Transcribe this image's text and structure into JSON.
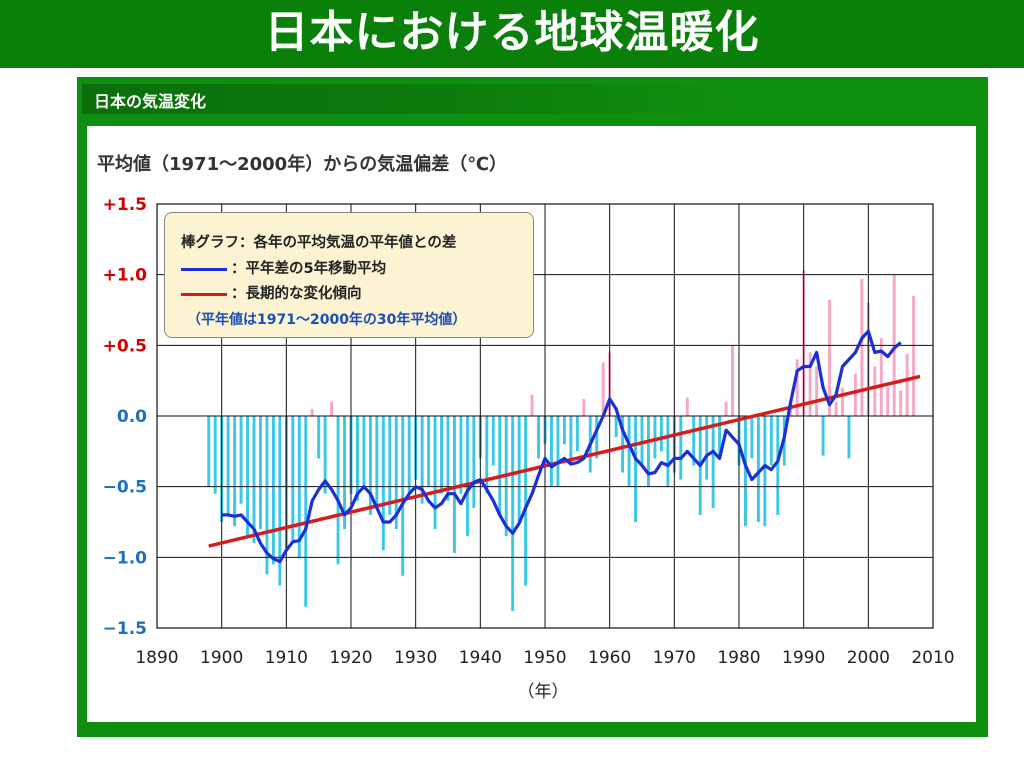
{
  "page_title": "日本における地球温暖化",
  "panel_title": "日本の気温変化",
  "colors": {
    "banner_green": "#0a7f0a",
    "frame_green": "#0f8f0f",
    "positive_bar": "#f4a7c6",
    "negative_bar": "#39c8e8",
    "moving_avg": "#1a2fd6",
    "trend": "#d81b1b",
    "ytick_positive": "#d40000",
    "ytick_negative": "#1e6fc2",
    "legend_bg": "#fbf3d2"
  },
  "chart_data": {
    "type": "bar",
    "title": "平均値（1971〜2000年）からの気温偏差（℃）",
    "xlabel": "（年）",
    "ylabel": "",
    "xlim": [
      1890,
      2010
    ],
    "ylim": [
      -1.5,
      1.5
    ],
    "grid": true,
    "legend_position": "top-left",
    "x_ticks": [
      "1890",
      "1900",
      "1910",
      "1920",
      "1930",
      "1940",
      "1950",
      "1960",
      "1970",
      "1980",
      "1990",
      "2000",
      "2010"
    ],
    "y_ticks": [
      "+1.5",
      "+1.0",
      "+0.5",
      "0.0",
      "−0.5",
      "−1.0",
      "−1.5"
    ],
    "legend": {
      "bars_label": "棒グラフ：各年の平均気温の平年値との差",
      "moving_avg_label": "：平年差の5年移動平均",
      "trend_label": "：長期的な変化傾向",
      "note": "（平年値は1971〜2000年の30年平均値）"
    },
    "years": [
      1898,
      1899,
      1900,
      1901,
      1902,
      1903,
      1904,
      1905,
      1906,
      1907,
      1908,
      1909,
      1910,
      1911,
      1912,
      1913,
      1914,
      1915,
      1916,
      1917,
      1918,
      1919,
      1920,
      1921,
      1922,
      1923,
      1924,
      1925,
      1926,
      1927,
      1928,
      1929,
      1930,
      1931,
      1932,
      1933,
      1934,
      1935,
      1936,
      1937,
      1938,
      1939,
      1940,
      1941,
      1942,
      1943,
      1944,
      1945,
      1946,
      1947,
      1948,
      1949,
      1950,
      1951,
      1952,
      1953,
      1954,
      1955,
      1956,
      1957,
      1958,
      1959,
      1960,
      1961,
      1962,
      1963,
      1964,
      1965,
      1966,
      1967,
      1968,
      1969,
      1970,
      1971,
      1972,
      1973,
      1974,
      1975,
      1976,
      1977,
      1978,
      1979,
      1980,
      1981,
      1982,
      1983,
      1984,
      1985,
      1986,
      1987,
      1988,
      1989,
      1990,
      1991,
      1992,
      1993,
      1994,
      1995,
      1996,
      1997,
      1998,
      1999,
      2000,
      2001,
      2002,
      2003,
      2004,
      2005,
      2006,
      2007
    ],
    "values": [
      -0.5,
      -0.55,
      -0.75,
      -0.7,
      -0.78,
      -0.62,
      -0.85,
      -0.9,
      -0.8,
      -1.12,
      -1.05,
      -1.2,
      -0.95,
      -0.88,
      -1.0,
      -1.35,
      0.05,
      -0.3,
      -0.55,
      0.1,
      -1.05,
      -0.8,
      -0.55,
      -0.6,
      -0.5,
      -0.7,
      -0.65,
      -0.95,
      -0.7,
      -0.8,
      -1.13,
      -0.55,
      -0.45,
      -0.62,
      -0.5,
      -0.8,
      -0.55,
      -0.6,
      -0.97,
      -0.55,
      -0.85,
      -0.65,
      -0.3,
      -0.55,
      -0.35,
      -0.7,
      -0.85,
      -1.38,
      -0.75,
      -1.2,
      0.15,
      -0.3,
      -0.2,
      -0.5,
      -0.5,
      -0.2,
      -0.35,
      -0.25,
      0.12,
      -0.4,
      -0.3,
      0.38,
      0.45,
      -0.15,
      -0.4,
      -0.5,
      -0.75,
      -0.35,
      -0.5,
      -0.3,
      -0.25,
      -0.5,
      -0.4,
      -0.45,
      0.13,
      -0.35,
      -0.7,
      -0.45,
      -0.65,
      -0.3,
      0.1,
      0.5,
      -0.35,
      -0.78,
      -0.3,
      -0.75,
      -0.78,
      -0.35,
      -0.7,
      -0.35,
      0.1,
      0.4,
      1.03,
      0.45,
      0.35,
      -0.28,
      0.82,
      0.1,
      0.2,
      -0.3,
      0.3,
      0.97,
      0.8,
      0.35,
      0.55,
      0.2,
      1.0,
      0.18,
      0.44,
      0.85
    ],
    "moving_avg": [
      [
        1900,
        -0.7
      ],
      [
        1901,
        -0.7
      ],
      [
        1902,
        -0.71
      ],
      [
        1903,
        -0.7
      ],
      [
        1904,
        -0.75
      ],
      [
        1905,
        -0.8
      ],
      [
        1906,
        -0.9
      ],
      [
        1907,
        -0.97
      ],
      [
        1908,
        -1.01
      ],
      [
        1909,
        -1.03
      ],
      [
        1910,
        -0.95
      ],
      [
        1911,
        -0.89
      ],
      [
        1912,
        -0.88
      ],
      [
        1913,
        -0.8
      ],
      [
        1914,
        -0.6
      ],
      [
        1915,
        -0.52
      ],
      [
        1916,
        -0.46
      ],
      [
        1917,
        -0.52
      ],
      [
        1918,
        -0.6
      ],
      [
        1919,
        -0.7
      ],
      [
        1920,
        -0.65
      ],
      [
        1921,
        -0.55
      ],
      [
        1922,
        -0.5
      ],
      [
        1923,
        -0.55
      ],
      [
        1924,
        -0.65
      ],
      [
        1925,
        -0.75
      ],
      [
        1926,
        -0.75
      ],
      [
        1927,
        -0.7
      ],
      [
        1928,
        -0.62
      ],
      [
        1929,
        -0.55
      ],
      [
        1930,
        -0.5
      ],
      [
        1931,
        -0.52
      ],
      [
        1932,
        -0.6
      ],
      [
        1933,
        -0.65
      ],
      [
        1934,
        -0.62
      ],
      [
        1935,
        -0.55
      ],
      [
        1936,
        -0.55
      ],
      [
        1937,
        -0.62
      ],
      [
        1938,
        -0.53
      ],
      [
        1939,
        -0.47
      ],
      [
        1940,
        -0.45
      ],
      [
        1941,
        -0.52
      ],
      [
        1942,
        -0.6
      ],
      [
        1943,
        -0.7
      ],
      [
        1944,
        -0.78
      ],
      [
        1945,
        -0.83
      ],
      [
        1946,
        -0.76
      ],
      [
        1947,
        -0.65
      ],
      [
        1948,
        -0.55
      ],
      [
        1949,
        -0.42
      ],
      [
        1950,
        -0.3
      ],
      [
        1951,
        -0.36
      ],
      [
        1952,
        -0.33
      ],
      [
        1953,
        -0.3
      ],
      [
        1954,
        -0.34
      ],
      [
        1955,
        -0.33
      ],
      [
        1956,
        -0.3
      ],
      [
        1957,
        -0.2
      ],
      [
        1958,
        -0.1
      ],
      [
        1959,
        0.0
      ],
      [
        1960,
        0.12
      ],
      [
        1961,
        0.05
      ],
      [
        1962,
        -0.1
      ],
      [
        1963,
        -0.2
      ],
      [
        1964,
        -0.3
      ],
      [
        1965,
        -0.35
      ],
      [
        1966,
        -0.41
      ],
      [
        1967,
        -0.4
      ],
      [
        1968,
        -0.33
      ],
      [
        1969,
        -0.35
      ],
      [
        1970,
        -0.3
      ],
      [
        1971,
        -0.3
      ],
      [
        1972,
        -0.25
      ],
      [
        1973,
        -0.3
      ],
      [
        1974,
        -0.35
      ],
      [
        1975,
        -0.28
      ],
      [
        1976,
        -0.25
      ],
      [
        1977,
        -0.3
      ],
      [
        1978,
        -0.1
      ],
      [
        1979,
        -0.15
      ],
      [
        1980,
        -0.2
      ],
      [
        1981,
        -0.35
      ],
      [
        1982,
        -0.45
      ],
      [
        1983,
        -0.4
      ],
      [
        1984,
        -0.35
      ],
      [
        1985,
        -0.38
      ],
      [
        1986,
        -0.32
      ],
      [
        1987,
        -0.15
      ],
      [
        1988,
        0.1
      ],
      [
        1989,
        0.32
      ],
      [
        1990,
        0.35
      ],
      [
        1991,
        0.35
      ],
      [
        1992,
        0.45
      ],
      [
        1993,
        0.2
      ],
      [
        1994,
        0.08
      ],
      [
        1995,
        0.15
      ],
      [
        1996,
        0.35
      ],
      [
        1997,
        0.4
      ],
      [
        1998,
        0.45
      ],
      [
        1999,
        0.55
      ],
      [
        2000,
        0.6
      ],
      [
        2001,
        0.45
      ],
      [
        2002,
        0.46
      ],
      [
        2003,
        0.42
      ],
      [
        2004,
        0.48
      ],
      [
        2005,
        0.52
      ]
    ],
    "trend": {
      "x": [
        1898,
        2008
      ],
      "y": [
        -0.92,
        0.28
      ]
    }
  }
}
